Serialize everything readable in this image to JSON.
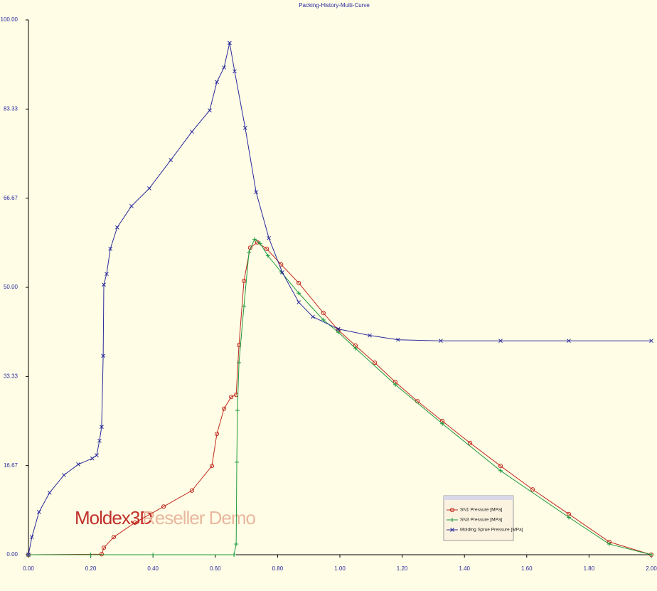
{
  "chart_data": {
    "type": "line",
    "title": "Packing-History-Multi-Curve",
    "xlim": [
      0,
      2
    ],
    "ylim": [
      0,
      100
    ],
    "xticks": [
      {
        "value": 0,
        "label": "0.00"
      },
      {
        "value": 0.2,
        "label": "0.20"
      },
      {
        "value": 0.4,
        "label": "0.40"
      },
      {
        "value": 0.6,
        "label": "0.60"
      },
      {
        "value": 0.8,
        "label": "0.80"
      },
      {
        "value": 1,
        "label": "1.00"
      },
      {
        "value": 1.2,
        "label": "1.20"
      },
      {
        "value": 1.4,
        "label": "1.40"
      },
      {
        "value": 1.6,
        "label": "1.60"
      },
      {
        "value": 1.8,
        "label": "1.80"
      },
      {
        "value": 2,
        "label": "2.00"
      }
    ],
    "yticks": [
      {
        "value": 0,
        "label": "0.00"
      },
      16.67,
      33.33,
      {
        "value": 50,
        "label": "50.00"
      },
      66.67,
      83.33,
      {
        "value": 100,
        "label": "100.00"
      }
    ],
    "grid": false,
    "annotations": [
      "Moldex3D",
      "Reseller Demo"
    ],
    "series": [
      {
        "name": "SN1 Pressure [MPa]",
        "color": "#c0281c",
        "marker": "circle",
        "x": [
          0,
          0.235,
          0.242,
          0.274,
          0.342,
          0.434,
          0.525,
          0.589,
          0.605,
          0.628,
          0.651,
          0.667,
          0.676,
          0.692,
          0.712,
          0.735,
          0.765,
          0.811,
          0.868,
          0.947,
          0.995,
          1.05,
          1.112,
          1.178,
          1.249,
          1.329,
          1.418,
          1.516,
          1.619,
          1.735,
          1.865,
          2.0
        ],
        "values": [
          0,
          0.1,
          1.3,
          3.3,
          6,
          9,
          12,
          16.6,
          22.6,
          27.3,
          29.5,
          29.9,
          39.2,
          51.2,
          57.4,
          58.4,
          57.2,
          54.3,
          50.8,
          45.2,
          42,
          39.1,
          35.9,
          32.3,
          28.7,
          25,
          20.9,
          16.6,
          12.2,
          7.6,
          2.4,
          0
        ]
      },
      {
        "name": "SN3 Pressure [MPa]",
        "color": "#1e9a3c",
        "marker": "plus",
        "x": [
          0,
          0.2,
          0.4,
          0.66,
          0.667,
          0.669,
          0.671,
          0.676,
          0.692,
          0.708,
          0.726,
          0.744,
          0.769,
          0.811,
          0.868,
          0.947,
          0.995,
          1.05,
          1.178,
          1.329,
          1.516,
          1.735,
          1.865,
          2.0
        ],
        "values": [
          0,
          0,
          0,
          0,
          2,
          17.3,
          27,
          35.9,
          46.5,
          56.5,
          59,
          58.2,
          55.9,
          52.9,
          48.9,
          43.9,
          41.6,
          38.6,
          31.8,
          24.5,
          15.7,
          7,
          2,
          0
        ]
      },
      {
        "name": "Molding Sprue Pressure [MPa]",
        "color": "#2a2a9c",
        "marker": "x",
        "x": [
          0,
          0.011,
          0.034,
          0.068,
          0.114,
          0.16,
          0.205,
          0.219,
          0.228,
          0.235,
          0.24,
          0.242,
          0.251,
          0.263,
          0.285,
          0.331,
          0.388,
          0.457,
          0.525,
          0.582,
          0.605,
          0.628,
          0.646,
          0.662,
          0.696,
          0.731,
          0.772,
          0.815,
          0.868,
          0.913,
          0.995,
          1.096,
          1.187,
          1.324,
          1.516,
          1.735,
          2.0
        ],
        "values": [
          0,
          3.3,
          8,
          11.6,
          14.9,
          16.9,
          18,
          18.6,
          21.3,
          23.9,
          37.2,
          50.5,
          52.5,
          57.2,
          61.2,
          65.2,
          68.5,
          73.8,
          79.1,
          83.1,
          88.4,
          91.1,
          95.7,
          90.4,
          79.8,
          67.8,
          59.2,
          52.8,
          47.2,
          44.5,
          42.2,
          41,
          40.2,
          40,
          40,
          40,
          40
        ]
      }
    ]
  }
}
